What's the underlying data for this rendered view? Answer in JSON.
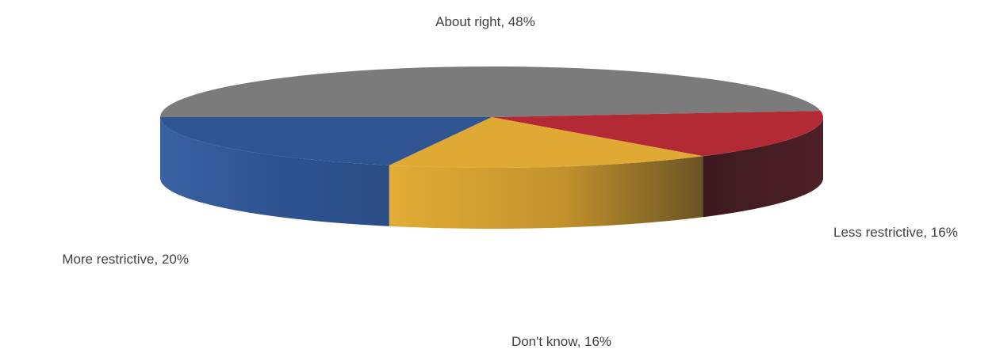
{
  "chart_data": {
    "type": "pie",
    "style": "3d",
    "title": "",
    "slices": [
      {
        "label": "About right",
        "value": 48,
        "data_label": "About right, 48%",
        "color": "#7b7b7b",
        "side_color": "#5a5a5a"
      },
      {
        "label": "Less restrictive",
        "value": 16,
        "data_label": "Less restrictive, 16%",
        "color": "#b32a35",
        "side_color": "#4a1f24"
      },
      {
        "label": "Don't know",
        "value": 16,
        "data_label": "Don't know, 16%",
        "color": "#dfa934",
        "side_color": "#b8892a"
      },
      {
        "label": "More restrictive",
        "value": 20,
        "data_label": "More restrictive, 20%",
        "color": "#2f5592",
        "side_color": "#2c4f88"
      }
    ],
    "legend": "none"
  }
}
